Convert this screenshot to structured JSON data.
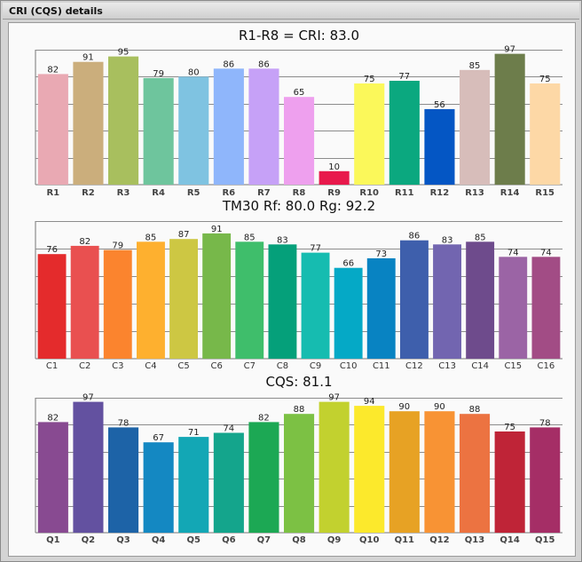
{
  "window": {
    "title": "CRI (CQS) details"
  },
  "chart_data": [
    {
      "type": "bar",
      "title": "R1-R8 = CRI: 83.0",
      "categories": [
        "R1",
        "R2",
        "R3",
        "R4",
        "R5",
        "R6",
        "R7",
        "R8",
        "R9",
        "R10",
        "R11",
        "R12",
        "R13",
        "R14",
        "R15"
      ],
      "values": [
        82,
        91,
        95,
        79,
        80,
        86,
        86,
        65,
        10,
        75,
        77,
        56,
        85,
        97,
        75
      ],
      "colors": [
        "#e9a9b3",
        "#cbae7c",
        "#a8bf5e",
        "#6ec59d",
        "#7fc3e1",
        "#8fb6fb",
        "#c6a1f7",
        "#eea0ee",
        "#e8194c",
        "#fbf85a",
        "#0ba87f",
        "#0456c4",
        "#d7bdba",
        "#6d7d4b",
        "#fdd8a6"
      ],
      "ylim": [
        0,
        100
      ],
      "grid": true,
      "bold_labels": true
    },
    {
      "type": "bar",
      "title": "TM30  Rf: 80.0   Rg: 92.2",
      "categories": [
        "C1",
        "C2",
        "C3",
        "C4",
        "C5",
        "C6",
        "C7",
        "C8",
        "C9",
        "C10",
        "C11",
        "C12",
        "C13",
        "C14",
        "C15",
        "C16"
      ],
      "values": [
        76,
        82,
        79,
        85,
        87,
        91,
        85,
        83,
        77,
        66,
        73,
        86,
        83,
        85,
        74,
        74
      ],
      "colors": [
        "#e42b2c",
        "#e95050",
        "#fb842e",
        "#feb02f",
        "#cdc743",
        "#77b84a",
        "#3fbe6b",
        "#05a07a",
        "#16bcb0",
        "#05a9c6",
        "#0883c2",
        "#3e5fac",
        "#7265b0",
        "#6e4b8c",
        "#9b64a5",
        "#a24c85"
      ],
      "ylim": [
        0,
        100
      ],
      "grid": true,
      "bold_labels": false
    },
    {
      "type": "bar",
      "title": "CQS: 81.1",
      "categories": [
        "Q1",
        "Q2",
        "Q3",
        "Q4",
        "Q5",
        "Q6",
        "Q7",
        "Q8",
        "Q9",
        "Q10",
        "Q11",
        "Q12",
        "Q13",
        "Q14",
        "Q15"
      ],
      "values": [
        82,
        97,
        78,
        67,
        71,
        74,
        82,
        88,
        97,
        94,
        90,
        90,
        88,
        75,
        78
      ],
      "colors": [
        "#884a91",
        "#6351a0",
        "#1d63a7",
        "#1488c2",
        "#13a7b5",
        "#14a58c",
        "#1ca854",
        "#7cc144",
        "#c2d12f",
        "#fce92c",
        "#e7a224",
        "#f89334",
        "#ec7341",
        "#bf2437",
        "#a52e66"
      ],
      "ylim": [
        0,
        100
      ],
      "grid": true,
      "bold_labels": true
    }
  ]
}
